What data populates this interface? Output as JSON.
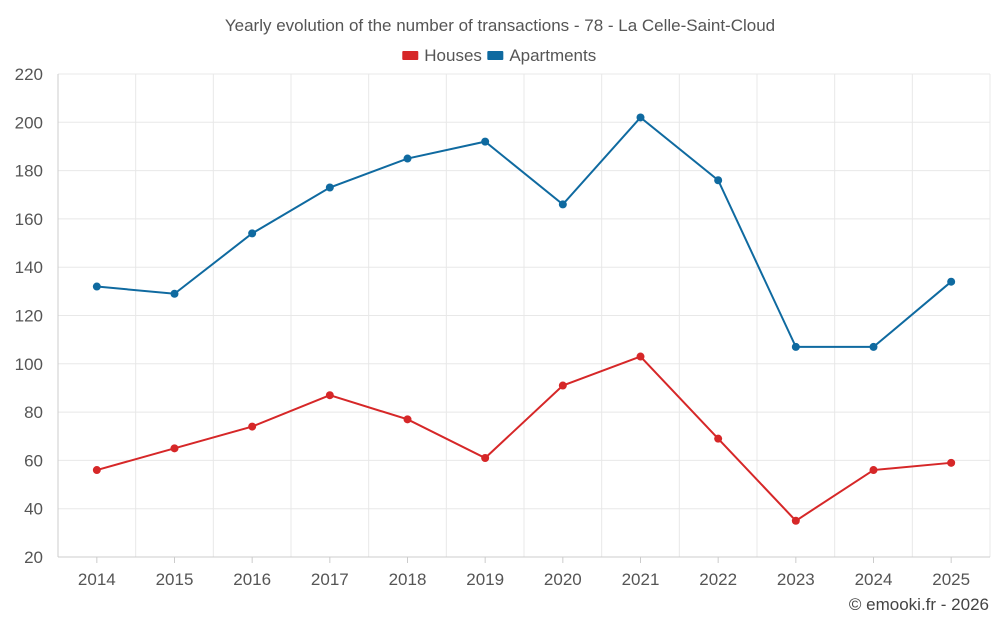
{
  "chart_data": {
    "type": "line",
    "title": "Yearly evolution of the number of transactions - 78 - La Celle-Saint-Cloud",
    "categories": [
      "2014",
      "2015",
      "2016",
      "2017",
      "2018",
      "2019",
      "2020",
      "2021",
      "2022",
      "2023",
      "2024",
      "2025"
    ],
    "series": [
      {
        "name": "Houses",
        "color": "#d62728",
        "values": [
          56,
          65,
          74,
          87,
          77,
          61,
          91,
          103,
          69,
          35,
          56,
          59
        ]
      },
      {
        "name": "Apartments",
        "color": "#0f6aa0",
        "values": [
          132,
          129,
          154,
          173,
          185,
          192,
          166,
          202,
          176,
          107,
          107,
          134
        ]
      }
    ],
    "ylim": [
      20,
      220
    ],
    "yticks": [
      20,
      40,
      60,
      80,
      100,
      120,
      140,
      160,
      180,
      200,
      220
    ],
    "xlabel": "",
    "ylabel": "",
    "grid": true,
    "legend": "top-center"
  },
  "credit": "© emooki.fr - 2026"
}
